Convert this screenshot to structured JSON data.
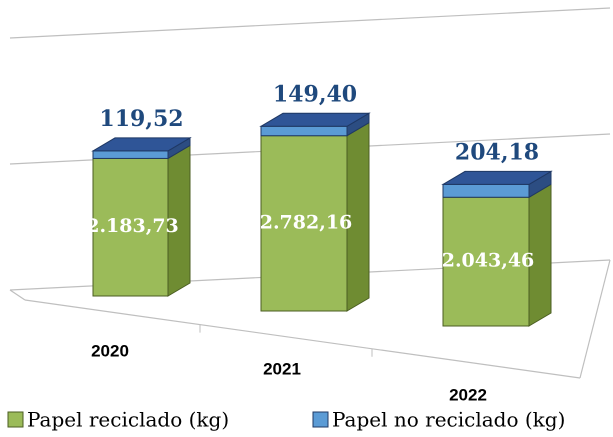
{
  "chart_data": {
    "type": "bar3d_stacked",
    "categories": [
      "2020",
      "2021",
      "2022"
    ],
    "series": [
      {
        "name": "Papel reciclado (kg)",
        "color": "#9bbb59",
        "values": [
          2183.73,
          2782.16,
          2043.46
        ],
        "value_labels": [
          "2.183,73",
          "2.782,16",
          "2.043,46"
        ]
      },
      {
        "name": "Papel no reciclado (kg)",
        "color": "#4f81bd",
        "values": [
          119.52,
          149.4,
          204.18
        ],
        "value_labels": [
          "119,52",
          "149,40",
          "204,18"
        ]
      }
    ],
    "ylim": [
      0,
      4000
    ],
    "yticks": [
      0,
      2000,
      4000
    ],
    "grid": true
  }
}
